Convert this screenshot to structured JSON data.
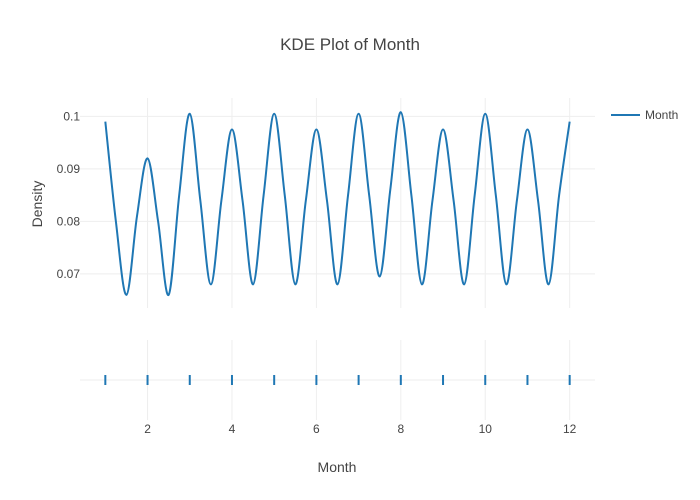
{
  "chart_data": {
    "type": "line",
    "title": "KDE Plot of Month",
    "xlabel": "Month",
    "ylabel": "Density",
    "xlim": [
      0.4,
      12.6
    ],
    "ylim": [
      0.0635,
      0.1035
    ],
    "x_ticks": [
      2,
      4,
      6,
      8,
      10,
      12
    ],
    "y_ticks": [
      0.07,
      0.08,
      0.09,
      0.1
    ],
    "y_tick_labels": [
      "0.07",
      "0.08",
      "0.09",
      "0.1"
    ],
    "grid": true,
    "legend_position": "top-right",
    "series": [
      {
        "name": "Month",
        "color": "#1f77b4",
        "x": [
          1.0,
          1.25,
          1.5,
          1.75,
          2.0,
          2.25,
          2.5,
          2.75,
          3.0,
          3.25,
          3.5,
          3.75,
          4.0,
          4.25,
          4.5,
          4.75,
          5.0,
          5.25,
          5.5,
          5.75,
          6.0,
          6.25,
          6.5,
          6.75,
          7.0,
          7.25,
          7.5,
          7.75,
          8.0,
          8.25,
          8.5,
          8.75,
          9.0,
          9.25,
          9.5,
          9.75,
          10.0,
          10.25,
          10.5,
          10.75,
          11.0,
          11.25,
          11.5,
          11.75,
          12.0
        ],
        "y": [
          0.099,
          0.08,
          0.066,
          0.081,
          0.092,
          0.08,
          0.066,
          0.085,
          0.1005,
          0.084,
          0.068,
          0.084,
          0.0975,
          0.084,
          0.068,
          0.085,
          0.1005,
          0.085,
          0.068,
          0.084,
          0.0975,
          0.084,
          0.068,
          0.085,
          0.1005,
          0.085,
          0.0695,
          0.086,
          0.1008,
          0.085,
          0.068,
          0.084,
          0.0975,
          0.084,
          0.068,
          0.085,
          0.1005,
          0.085,
          0.068,
          0.084,
          0.0975,
          0.084,
          0.068,
          0.085,
          0.099
        ]
      }
    ],
    "rug": {
      "name": "Month",
      "color": "#1f77b4",
      "values": [
        1,
        2,
        3,
        4,
        5,
        6,
        7,
        8,
        9,
        10,
        11,
        12
      ]
    }
  }
}
